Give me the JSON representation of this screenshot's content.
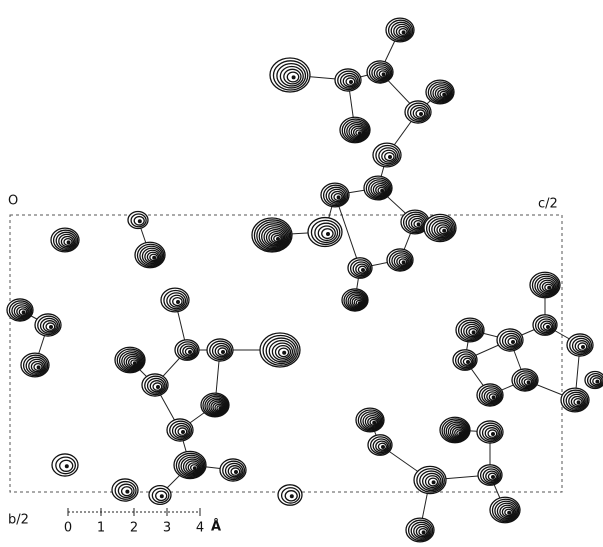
{
  "labels": {
    "origin": "O",
    "c_axis": "c/2",
    "b_axis": "b/2"
  },
  "scale": {
    "ticks": [
      "0",
      "1",
      "2",
      "3",
      "4"
    ],
    "unit": "Å"
  }
}
